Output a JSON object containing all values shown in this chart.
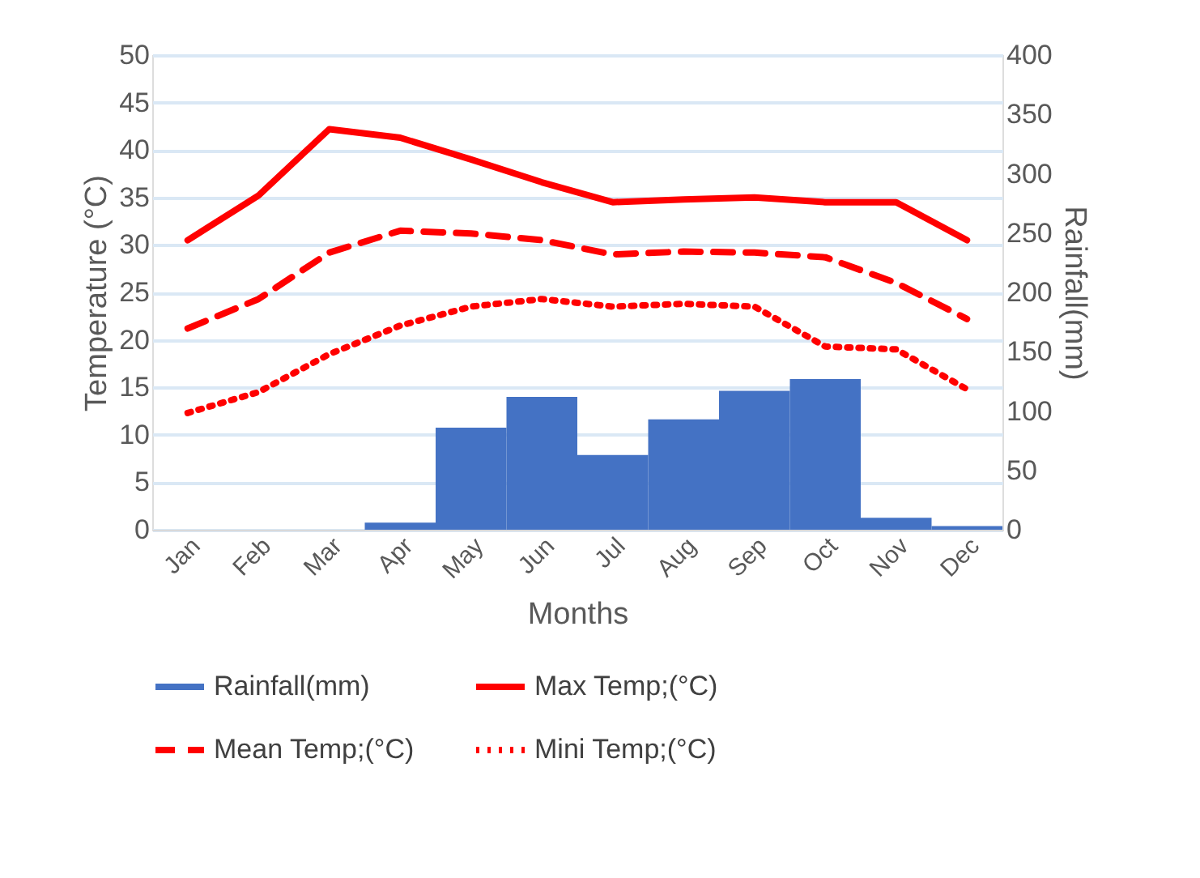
{
  "chart_data": {
    "type": "line",
    "xlabel": "Months",
    "ylabel": "Temperature (°C)",
    "y2label": "Rainfall(mm)",
    "categories": [
      "Jan",
      "Feb",
      "Mar",
      "Apr",
      "May",
      "Jun",
      "Jul",
      "Aug",
      "Sep",
      "Oct",
      "Nov",
      "Dec"
    ],
    "series": [
      {
        "name": "Rainfall(mm)",
        "type": "bar",
        "axis": "y2",
        "color": "#4472c4",
        "values": [
          0,
          0,
          0,
          6,
          86,
          112,
          63,
          93,
          117,
          127,
          10,
          3
        ]
      },
      {
        "name": "Max Temp;(°C)",
        "line_style": "solid",
        "color": "#ff0000",
        "values": [
          30.5,
          35.2,
          42.2,
          41.3,
          39.0,
          36.6,
          34.5,
          34.8,
          35.0,
          34.5,
          34.5,
          30.5
        ]
      },
      {
        "name": "Mean Temp;(°C)",
        "line_style": "dashed",
        "color": "#ff0000",
        "values": [
          21.2,
          24.3,
          29.2,
          31.5,
          31.2,
          30.5,
          29.0,
          29.3,
          29.2,
          28.7,
          26.0,
          22.2
        ]
      },
      {
        "name": "Mini Temp;(°C)",
        "line_style": "dotted",
        "color": "#ff0000",
        "values": [
          12.3,
          14.5,
          18.5,
          21.5,
          23.5,
          24.3,
          23.5,
          23.8,
          23.5,
          19.3,
          19.0,
          14.8
        ]
      }
    ],
    "ylim": [
      0,
      50
    ],
    "yticks": [
      0,
      5,
      10,
      15,
      20,
      25,
      30,
      35,
      40,
      45,
      50
    ],
    "y2lim": [
      0,
      400
    ],
    "y2ticks": [
      0,
      50,
      100,
      150,
      200,
      250,
      300,
      350,
      400
    ],
    "grid": "y",
    "legend": "bottom"
  }
}
